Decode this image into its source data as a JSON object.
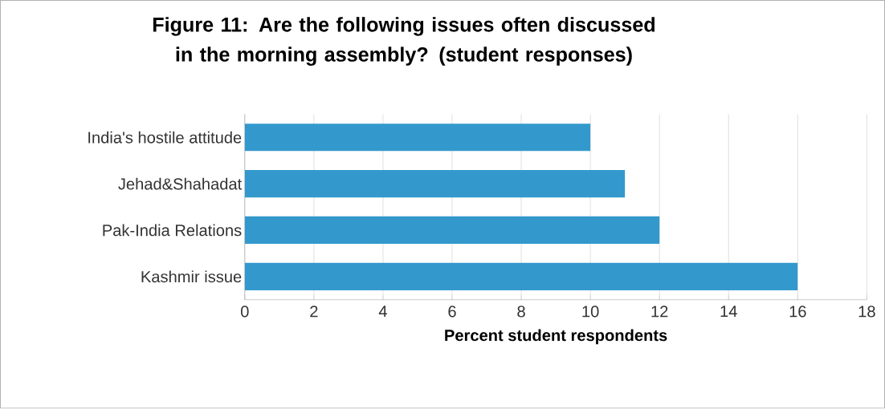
{
  "chart_data": {
    "type": "bar",
    "orientation": "horizontal",
    "title": "Figure 11: Are the following issues often discussed in the morning assembly? (student responses)",
    "xlabel": "Percent student respondents",
    "categories": [
      "India's hostile attitude",
      "Jehad&Shahadat",
      "Pak-India Relations",
      "Kashmir issue"
    ],
    "values": [
      10,
      11,
      12,
      16
    ],
    "color": "#3399cc",
    "xlim": [
      0,
      18
    ],
    "xticks": [
      0,
      2,
      4,
      6,
      8,
      10,
      12,
      14,
      16,
      18
    ],
    "grid": "x"
  }
}
